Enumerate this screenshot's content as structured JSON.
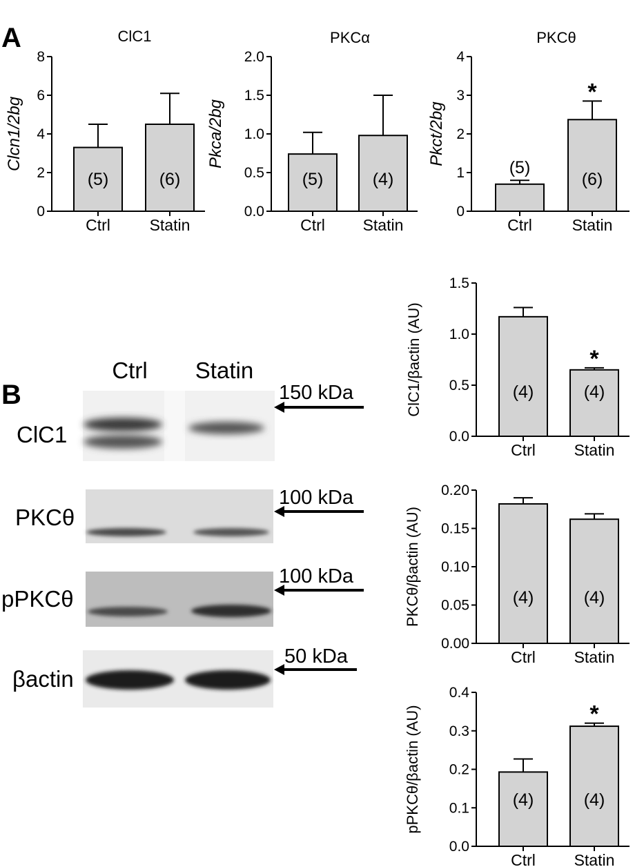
{
  "panel_labels": [
    "A",
    "B"
  ],
  "western_blot": {
    "lane_headers": [
      "Ctrl",
      "Statin"
    ],
    "blots": [
      {
        "protein": "ClC1",
        "marker": "150 kDa"
      },
      {
        "protein": "PKCθ",
        "marker": "100 kDa"
      },
      {
        "protein": "pPKCθ",
        "marker": "100 kDa"
      },
      {
        "protein": "βactin",
        "marker": "50 kDa"
      }
    ]
  },
  "colors": {
    "bar_fill": "#d3d3d3",
    "ink": "#000000"
  },
  "chart_data": [
    {
      "type": "bar",
      "title": "ClC1",
      "ylabel": "Clcn1/2bg",
      "categories": [
        "Ctrl",
        "Statin"
      ],
      "values": [
        3.3,
        4.5
      ],
      "errors": [
        1.2,
        1.6
      ],
      "n_labels": [
        "(5)",
        "(6)"
      ],
      "significance": [
        "",
        ""
      ],
      "ylim": [
        0,
        8
      ],
      "yticks": [
        "0",
        "2",
        "4",
        "6",
        "8"
      ]
    },
    {
      "type": "bar",
      "title": "PKCα",
      "ylabel": "Pkca/2bg",
      "categories": [
        "Ctrl",
        "Statin"
      ],
      "values": [
        0.74,
        0.98
      ],
      "errors": [
        0.28,
        0.52
      ],
      "n_labels": [
        "(5)",
        "(4)"
      ],
      "significance": [
        "",
        ""
      ],
      "ylim": [
        0,
        2
      ],
      "yticks": [
        "0.0",
        "0.5",
        "1.0",
        "1.5",
        "2.0"
      ]
    },
    {
      "type": "bar",
      "title": "PKCθ",
      "ylabel": "Pkct/2bg",
      "categories": [
        "Ctrl",
        "Statin"
      ],
      "values": [
        0.7,
        2.37
      ],
      "errors": [
        0.1,
        0.48
      ],
      "n_labels": [
        "(5)",
        "(6)"
      ],
      "significance": [
        "",
        "*"
      ],
      "ylim": [
        0,
        4
      ],
      "yticks": [
        "0",
        "1",
        "2",
        "3",
        "4"
      ]
    },
    {
      "type": "bar",
      "title": "",
      "ylabel": "ClC1/βactin (AU)",
      "categories": [
        "Ctrl",
        "Statin"
      ],
      "values": [
        1.17,
        0.65
      ],
      "errors": [
        0.09,
        0.02
      ],
      "n_labels": [
        "(4)",
        "(4)"
      ],
      "significance": [
        "",
        "*"
      ],
      "ylim": [
        0,
        1.5
      ],
      "yticks": [
        "0.0",
        "0.5",
        "1.0",
        "1.5"
      ]
    },
    {
      "type": "bar",
      "title": "",
      "ylabel": "PKCθ/βactin (AU)",
      "categories": [
        "Ctrl",
        "Statin"
      ],
      "values": [
        0.182,
        0.162
      ],
      "errors": [
        0.008,
        0.007
      ],
      "n_labels": [
        "(4)",
        "(4)"
      ],
      "significance": [
        "",
        ""
      ],
      "ylim": [
        0,
        0.2
      ],
      "yticks": [
        "0.00",
        "0.05",
        "0.10",
        "0.15",
        "0.20"
      ]
    },
    {
      "type": "bar",
      "title": "",
      "ylabel": "pPKCθ/βactin (AU)",
      "categories": [
        "Ctrl",
        "Statin"
      ],
      "values": [
        0.193,
        0.312
      ],
      "errors": [
        0.034,
        0.008
      ],
      "n_labels": [
        "(4)",
        "(4)"
      ],
      "significance": [
        "",
        "*"
      ],
      "ylim": [
        0,
        0.4
      ],
      "yticks": [
        "0.0",
        "0.1",
        "0.2",
        "0.3",
        "0.4"
      ]
    }
  ]
}
